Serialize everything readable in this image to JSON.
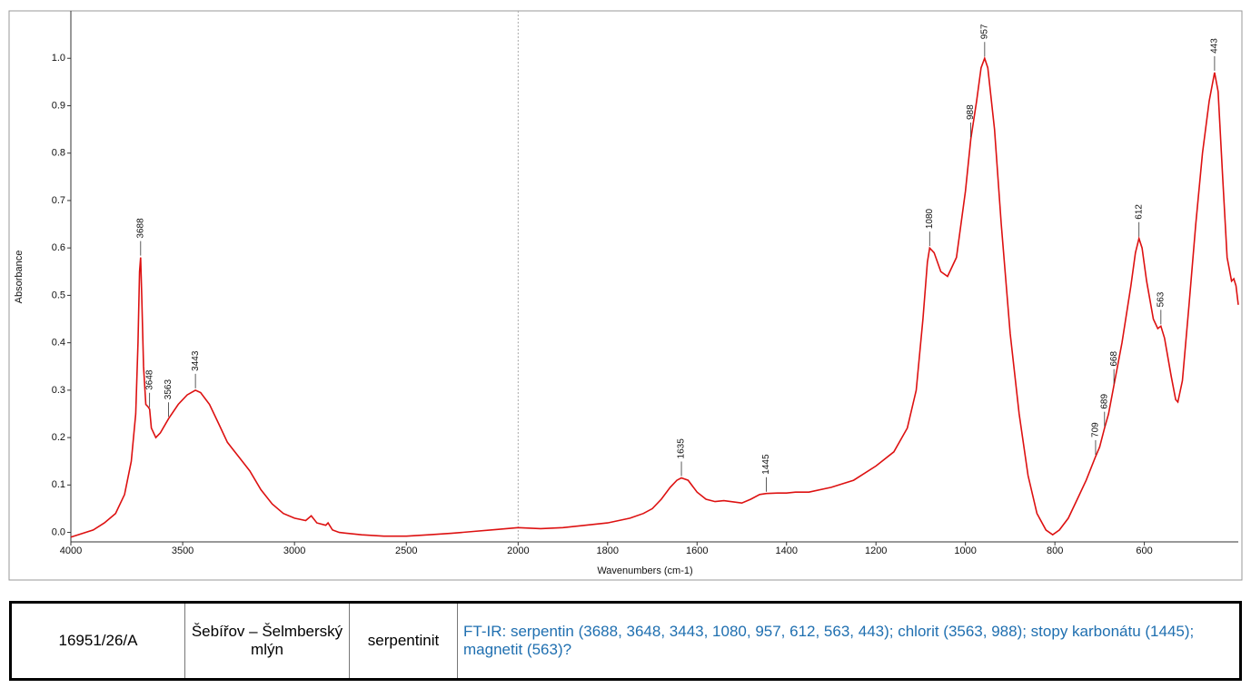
{
  "chart_data": {
    "type": "line",
    "x_label": "Wavenumbers (cm-1)",
    "y_label": "Absorbance",
    "x": [
      4000,
      3900,
      3850,
      3800,
      3760,
      3730,
      3710,
      3700,
      3693,
      3688,
      3683,
      3675,
      3665,
      3655,
      3648,
      3640,
      3620,
      3600,
      3563,
      3520,
      3480,
      3443,
      3420,
      3380,
      3340,
      3300,
      3250,
      3200,
      3150,
      3100,
      3050,
      3000,
      2950,
      2925,
      2900,
      2860,
      2850,
      2830,
      2800,
      2700,
      2600,
      2500,
      2400,
      2300,
      2200,
      2100,
      2000,
      1950,
      1900,
      1850,
      1800,
      1750,
      1720,
      1700,
      1680,
      1660,
      1645,
      1635,
      1620,
      1600,
      1580,
      1560,
      1540,
      1500,
      1480,
      1460,
      1445,
      1420,
      1400,
      1380,
      1350,
      1300,
      1250,
      1200,
      1160,
      1130,
      1110,
      1095,
      1085,
      1080,
      1070,
      1055,
      1040,
      1020,
      1000,
      988,
      975,
      965,
      957,
      950,
      935,
      920,
      900,
      880,
      860,
      840,
      820,
      805,
      790,
      770,
      750,
      730,
      709,
      700,
      689,
      680,
      668,
      650,
      630,
      620,
      612,
      605,
      595,
      580,
      570,
      563,
      555,
      540,
      530,
      525,
      515,
      500,
      485,
      470,
      455,
      443,
      435,
      425,
      415,
      405,
      400,
      395,
      390
    ],
    "values": [
      -0.01,
      0.005,
      0.02,
      0.04,
      0.08,
      0.15,
      0.25,
      0.4,
      0.55,
      0.58,
      0.5,
      0.35,
      0.27,
      0.265,
      0.26,
      0.22,
      0.2,
      0.21,
      0.24,
      0.27,
      0.29,
      0.3,
      0.295,
      0.27,
      0.23,
      0.19,
      0.16,
      0.13,
      0.09,
      0.06,
      0.04,
      0.03,
      0.025,
      0.035,
      0.02,
      0.015,
      0.02,
      0.005,
      0.0,
      -0.005,
      -0.008,
      -0.008,
      -0.005,
      -0.002,
      0.002,
      0.006,
      0.01,
      0.008,
      0.01,
      0.015,
      0.02,
      0.03,
      0.04,
      0.05,
      0.07,
      0.095,
      0.11,
      0.115,
      0.11,
      0.085,
      0.07,
      0.065,
      0.067,
      0.062,
      0.07,
      0.08,
      0.082,
      0.083,
      0.083,
      0.085,
      0.085,
      0.095,
      0.11,
      0.14,
      0.17,
      0.22,
      0.3,
      0.45,
      0.57,
      0.6,
      0.59,
      0.55,
      0.54,
      0.58,
      0.72,
      0.83,
      0.91,
      0.98,
      1.0,
      0.98,
      0.85,
      0.65,
      0.42,
      0.25,
      0.12,
      0.04,
      0.005,
      -0.005,
      0.005,
      0.03,
      0.07,
      0.11,
      0.16,
      0.18,
      0.22,
      0.25,
      0.31,
      0.4,
      0.52,
      0.59,
      0.62,
      0.6,
      0.53,
      0.45,
      0.43,
      0.435,
      0.41,
      0.33,
      0.28,
      0.275,
      0.32,
      0.48,
      0.65,
      0.8,
      0.91,
      0.97,
      0.93,
      0.75,
      0.58,
      0.53,
      0.535,
      0.52,
      0.48
    ],
    "color": "#dd1111",
    "xlim": [
      4000,
      390
    ],
    "x_break": {
      "value": 2000,
      "factor": 2
    },
    "xticks": [
      4000,
      3500,
      3000,
      2500,
      2000,
      1800,
      1600,
      1400,
      1200,
      1000,
      800,
      600
    ],
    "ylim": [
      -0.02,
      1.1
    ],
    "yticks": [
      {
        "value": 0,
        "label": "0.0"
      },
      0.1,
      0.2,
      0.3,
      0.4,
      0.5,
      0.6,
      0.7,
      0.8,
      0.9,
      {
        "value": 1,
        "label": "1.0"
      }
    ],
    "peaks": [
      3688,
      3648,
      3563,
      3443,
      1635,
      1445,
      1080,
      988,
      957,
      709,
      689,
      668,
      612,
      563,
      443
    ]
  },
  "table": {
    "rows": [
      [
        "16951/26/A",
        "Šebířov – Šelmberský mlýn",
        "serpentinit",
        "FT-IR: serpentin (3688, 3648, 3443, 1080, 957, 612, 563, 443); chlorit (3563, 988); stopy karbonátu (1445); magnetit (563)?"
      ]
    ]
  }
}
